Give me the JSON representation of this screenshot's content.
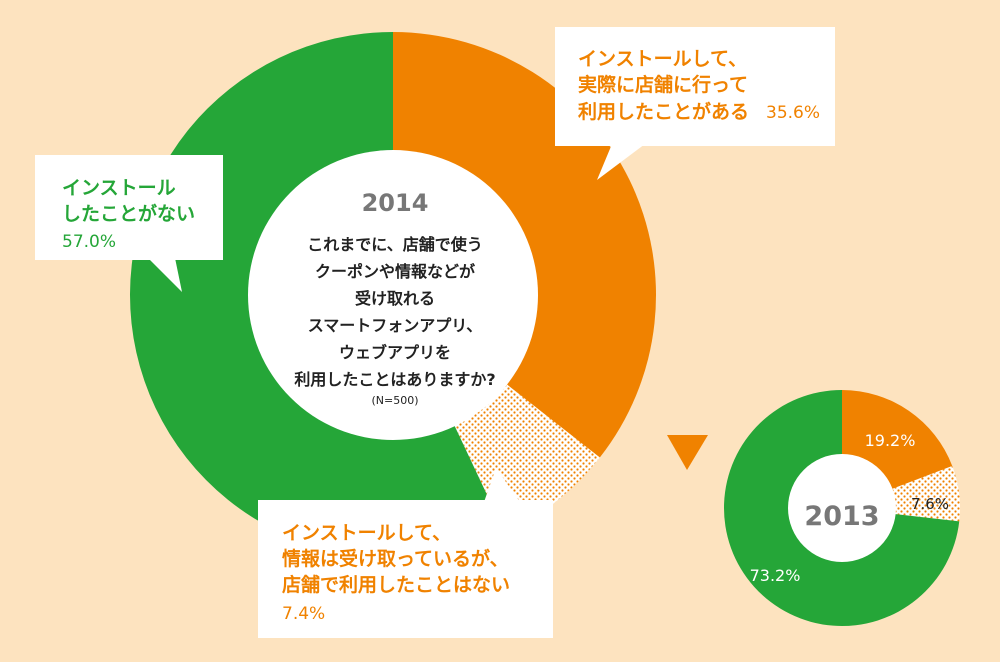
{
  "chart_data": [
    {
      "type": "pie",
      "title": "2014",
      "question": [
        "これまでに、店舗で使う",
        "クーポンや情報などが",
        "受け取れる",
        "スマートフォンアプリ、",
        "ウェブアプリを",
        "利用したことはありますか?"
      ],
      "sample": "(N=500)",
      "slices": [
        {
          "label": [
            "インストールして、",
            "実際に店舗に行って",
            "利用したことがある"
          ],
          "value": 35.6,
          "value_label": "35.6%",
          "color": "#f08200",
          "pattern": "solid"
        },
        {
          "label": [
            "インストールして、",
            "情報は受け取っているが、",
            "店舗で利用したことはない"
          ],
          "value": 7.4,
          "value_label": "7.4%",
          "color": "#f08200",
          "pattern": "dots"
        },
        {
          "label": [
            "インストール",
            "したことがない"
          ],
          "value": 57.0,
          "value_label": "57.0%",
          "color": "#25a638",
          "pattern": "solid"
        }
      ]
    },
    {
      "type": "pie",
      "title": "2013",
      "slices": [
        {
          "value": 19.2,
          "value_label": "19.2%",
          "color": "#f08200",
          "pattern": "solid"
        },
        {
          "value": 7.6,
          "value_label": "7.6%",
          "color": "#f08200",
          "pattern": "dots"
        },
        {
          "value": 73.2,
          "value_label": "73.2%",
          "color": "#25a638",
          "pattern": "solid"
        }
      ]
    }
  ],
  "colors": {
    "background": "#fde3bf",
    "orange": "#f08200",
    "green": "#25a638",
    "dot_bg": "#ffffff",
    "year_text": "#777777",
    "dark_text": "#222222"
  },
  "icons": {
    "arrow": "triangle-down-icon"
  }
}
